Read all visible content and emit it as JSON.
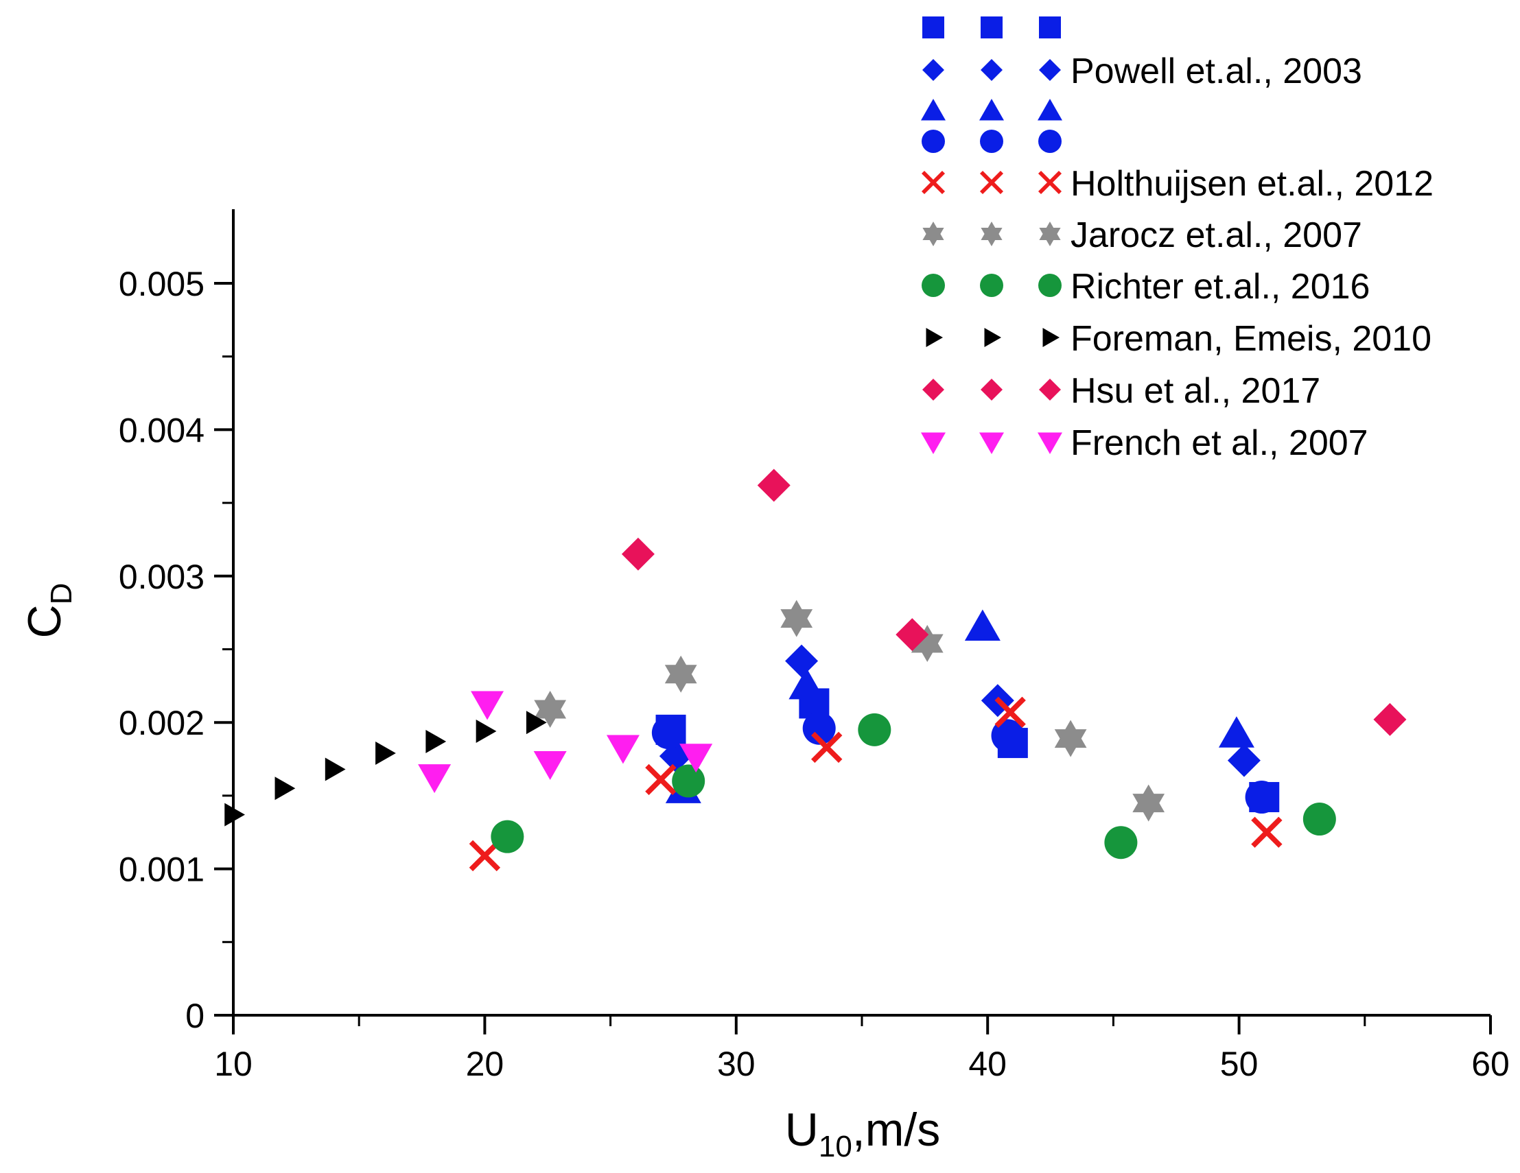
{
  "chart_data": {
    "type": "scatter",
    "title": "",
    "xlabel": "U",
    "xlabel_sub": "10",
    "xlabel_suffix": ",m/s",
    "ylabel": "C",
    "ylabel_sub": "D",
    "xlim": [
      10,
      60
    ],
    "ylim": [
      0,
      0.0055
    ],
    "x_ticks": [
      10,
      20,
      30,
      40,
      50,
      60
    ],
    "x_tick_labels": [
      "10",
      "20",
      "30",
      "40",
      "50",
      "60"
    ],
    "y_ticks": [
      0,
      0.001,
      0.002,
      0.003,
      0.004,
      0.005
    ],
    "y_tick_labels": [
      "0",
      "0.001",
      "0.002",
      "0.003",
      "0.004",
      "0.005"
    ],
    "grid": false,
    "legend_position": "top-right",
    "series": [
      {
        "name": "Powell et.al., 2003 (squares)",
        "legend_label": "",
        "marker": "square",
        "color": "#0a1ee6",
        "points": [
          [
            27.4,
            0.00195
          ],
          [
            33.1,
            0.00213
          ],
          [
            41.0,
            0.00186
          ],
          [
            51.0,
            0.00149
          ]
        ]
      },
      {
        "name": "Powell et.al., 2003",
        "legend_label": "Powell et.al., 2003",
        "marker": "diamond",
        "color": "#0a1ee6",
        "points": [
          [
            27.6,
            0.00177
          ],
          [
            32.6,
            0.00242
          ],
          [
            40.4,
            0.00215
          ],
          [
            50.2,
            0.00174
          ]
        ]
      },
      {
        "name": "Powell et.al., 2003 (triangles)",
        "legend_label": "",
        "marker": "triangle-up",
        "color": "#0a1ee6",
        "points": [
          [
            27.9,
            0.00154
          ],
          [
            32.8,
            0.00225
          ],
          [
            39.8,
            0.00265
          ],
          [
            49.9,
            0.00192
          ]
        ]
      },
      {
        "name": "Powell et.al., 2003 (circles)",
        "legend_label": "",
        "marker": "circle",
        "color": "#0a1ee6",
        "points": [
          [
            27.3,
            0.00193
          ],
          [
            33.3,
            0.00196
          ],
          [
            40.8,
            0.00191
          ],
          [
            50.9,
            0.00149
          ]
        ]
      },
      {
        "name": "Holthuijsen et.al., 2012",
        "legend_label": "Holthuijsen et.al., 2012",
        "marker": "cross",
        "color": "#ee1c1c",
        "points": [
          [
            20.0,
            0.00109
          ],
          [
            27.0,
            0.00161
          ],
          [
            33.6,
            0.00183
          ],
          [
            40.9,
            0.00207
          ],
          [
            51.1,
            0.00125
          ]
        ]
      },
      {
        "name": "Jarocz et.al., 2007",
        "legend_label": "Jarocz et.al., 2007",
        "marker": "star",
        "color": "#8c8c8c",
        "points": [
          [
            22.6,
            0.00209
          ],
          [
            27.8,
            0.00233
          ],
          [
            32.4,
            0.00271
          ],
          [
            37.6,
            0.00254
          ],
          [
            43.3,
            0.00189
          ],
          [
            46.4,
            0.00145
          ]
        ]
      },
      {
        "name": "Richter et.al., 2016",
        "legend_label": "Richter et.al., 2016",
        "marker": "circle",
        "color": "#16963c",
        "points": [
          [
            20.9,
            0.00122
          ],
          [
            28.1,
            0.0016
          ],
          [
            35.5,
            0.00195
          ],
          [
            45.3,
            0.00118
          ],
          [
            53.2,
            0.00134
          ]
        ]
      },
      {
        "name": "Foreman, Emeis, 2010",
        "legend_label": "Foreman, Emeis, 2010",
        "marker": "triangle-right",
        "color": "#000000",
        "points": [
          [
            10.0,
            0.00137
          ],
          [
            12.0,
            0.00155
          ],
          [
            14.0,
            0.00168
          ],
          [
            16.0,
            0.00179
          ],
          [
            18.0,
            0.00187
          ],
          [
            20.0,
            0.00194
          ],
          [
            22.0,
            0.002
          ]
        ]
      },
      {
        "name": "Hsu et al., 2017",
        "legend_label": "Hsu et al., 2017",
        "marker": "diamond",
        "color": "#e8125a",
        "points": [
          [
            26.1,
            0.00315
          ],
          [
            31.5,
            0.00362
          ],
          [
            37.0,
            0.0026
          ],
          [
            56.0,
            0.00202
          ]
        ]
      },
      {
        "name": "French et al., 2007",
        "legend_label": "French et al., 2007",
        "marker": "triangle-down",
        "color": "#ff1ef0",
        "points": [
          [
            18.0,
            0.00163
          ],
          [
            20.1,
            0.00213
          ],
          [
            22.6,
            0.00172
          ],
          [
            25.5,
            0.00183
          ],
          [
            28.4,
            0.00177
          ]
        ]
      }
    ]
  }
}
